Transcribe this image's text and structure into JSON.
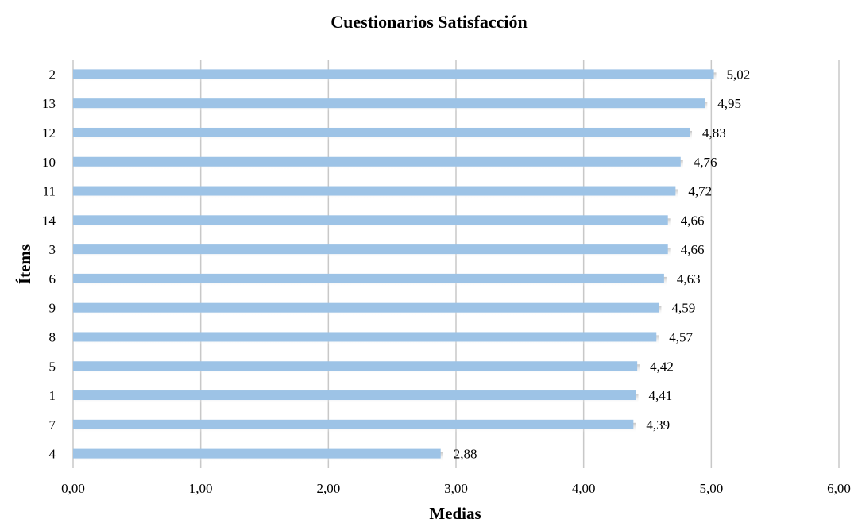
{
  "chart_data": {
    "type": "bar",
    "orientation": "horizontal",
    "title": "Cuestionarios Satisfacción",
    "xlabel": "Medias",
    "ylabel": "Ítems",
    "categories": [
      "2",
      "13",
      "12",
      "10",
      "11",
      "14",
      "3",
      "6",
      "9",
      "8",
      "5",
      "1",
      "7",
      "4"
    ],
    "values": [
      5.02,
      4.95,
      4.83,
      4.76,
      4.72,
      4.66,
      4.66,
      4.63,
      4.59,
      4.57,
      4.42,
      4.41,
      4.39,
      2.88
    ],
    "value_labels": [
      "5,02",
      "4,95",
      "4,83",
      "4,76",
      "4,72",
      "4,66",
      "4,66",
      "4,63",
      "4,59",
      "4,57",
      "4,42",
      "4,41",
      "4,39",
      "2,88"
    ],
    "xticks": [
      0,
      1,
      2,
      3,
      4,
      5,
      6
    ],
    "xtick_labels": [
      "0,00",
      "1,00",
      "2,00",
      "3,00",
      "4,00",
      "5,00",
      "6,00"
    ],
    "xlim": [
      0,
      6
    ],
    "grid": "vertical",
    "legend": "none",
    "bar_color": "#9dc3e6"
  }
}
